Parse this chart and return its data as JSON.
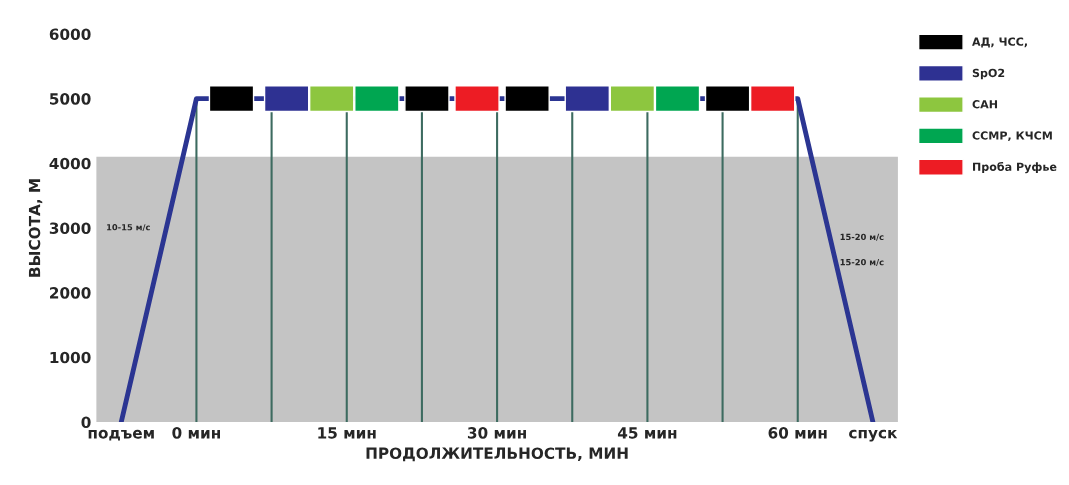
{
  "chart_data": {
    "type": "line",
    "xlabel": "ПРОДОЛЖИТЕЛЬНОСТЬ, МИН",
    "ylabel": "ВЫСОТА, М",
    "xlim": [
      -10,
      70
    ],
    "ylim": [
      0,
      6000
    ],
    "xticks": [
      {
        "value": -7.5,
        "label": "подъем"
      },
      {
        "value": 0,
        "label": "0 мин"
      },
      {
        "value": 15,
        "label": "15 мин"
      },
      {
        "value": 30,
        "label": "30 мин"
      },
      {
        "value": 45,
        "label": "45 мин"
      },
      {
        "value": 60,
        "label": "60 мин"
      },
      {
        "value": 67.5,
        "label": "спуск"
      }
    ],
    "yticks": [
      0,
      1000,
      2000,
      3000,
      4000,
      5000,
      6000
    ],
    "grid": false,
    "legend": "right",
    "marker": "none",
    "line_style": "solid",
    "series": [
      {
        "color": "#2b3592",
        "x": [
          -7.5,
          0,
          60,
          67.5
        ],
        "values": [
          0,
          5000,
          5000,
          0
        ]
      },
      {
        "name": "АД, ЧСС,",
        "type": "bar",
        "color": "#000000",
        "x": [
          3.5,
          23,
          33,
          53
        ],
        "base": [
          4800,
          4800,
          4800,
          4800
        ],
        "values": [
          400,
          400,
          400,
          400
        ]
      },
      {
        "name": "SpO2",
        "type": "bar",
        "color": "#2e3192",
        "x": [
          9,
          39
        ],
        "base": [
          4800,
          4800
        ],
        "values": [
          400,
          400
        ]
      },
      {
        "name": "САН",
        "type": "bar",
        "color": "#8dc63f",
        "x": [
          13.5,
          43.5
        ],
        "base": [
          4800,
          4800
        ],
        "values": [
          400,
          400
        ]
      },
      {
        "name": "ССМР, КЧСМ",
        "type": "bar",
        "color": "#00a651",
        "x": [
          18,
          48
        ],
        "base": [
          4800,
          4800
        ],
        "values": [
          400,
          400
        ]
      },
      {
        "name": "Проба Руфье",
        "type": "bar",
        "color": "#ed1c24",
        "x": [
          28,
          57.5
        ],
        "base": [
          4800,
          4800
        ],
        "values": [
          400,
          400
        ]
      }
    ],
    "ref_lines": [
      {
        "axis": "x",
        "value": 0,
        "color": "#3d6b60"
      },
      {
        "axis": "x",
        "value": 7.5,
        "color": "#3d6b60"
      },
      {
        "axis": "x",
        "value": 15,
        "color": "#3d6b60"
      },
      {
        "axis": "x",
        "value": 22.5,
        "color": "#3d6b60"
      },
      {
        "axis": "x",
        "value": 30,
        "color": "#3d6b60"
      },
      {
        "axis": "x",
        "value": 37.5,
        "color": "#3d6b60"
      },
      {
        "axis": "x",
        "value": 45,
        "color": "#3d6b60"
      },
      {
        "axis": "x",
        "value": 52.5,
        "color": "#3d6b60"
      },
      {
        "axis": "x",
        "value": 60,
        "color": "#3d6b60"
      }
    ],
    "bands": [
      {
        "axis": "y",
        "from": 0,
        "to": 4100,
        "color": "#c4c4c4"
      }
    ],
    "annotations": [
      "10-15 м/с",
      "15-20 м/с",
      "15-20 м/с"
    ]
  }
}
